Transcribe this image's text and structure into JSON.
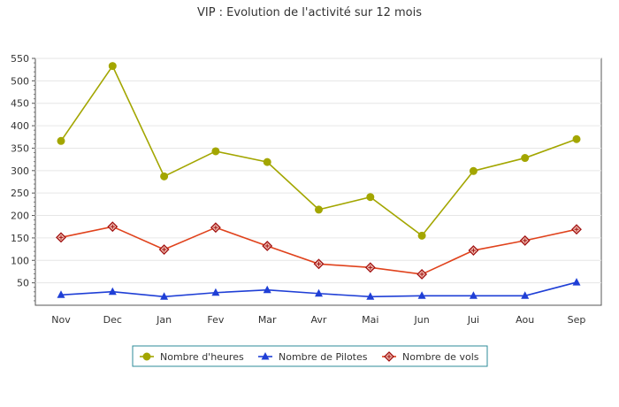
{
  "chart_data": {
    "type": "line",
    "title": "VIP : Evolution de l'activité sur 12 mois",
    "categories": [
      "Nov",
      "Dec",
      "Jan",
      "Fev",
      "Mar",
      "Avr",
      "Mai",
      "Jun",
      "Jui",
      "Aou",
      "Sep"
    ],
    "yticks": [
      "50",
      "100",
      "150",
      "200",
      "250",
      "300",
      "350",
      "400",
      "450",
      "500",
      "550"
    ],
    "ylim": [
      0,
      550
    ],
    "grid": true,
    "legend_position": "bottom",
    "series": [
      {
        "name": "Nombre d'heures",
        "color": "#a3a600",
        "marker": "circle",
        "values": [
          374,
          541,
          295,
          351,
          327,
          221,
          249,
          163,
          307,
          336,
          378
        ]
      },
      {
        "name": "Nombre de Pilotes",
        "color": "#1f3fd6",
        "marker": "triangle",
        "values": [
          31,
          38,
          27,
          36,
          42,
          34,
          27,
          29,
          29,
          29,
          59
        ]
      },
      {
        "name": "Nombre de vols",
        "color": "#e0421c",
        "marker": "diamond",
        "values": [
          159,
          183,
          132,
          181,
          140,
          100,
          92,
          77,
          130,
          152,
          177
        ]
      }
    ]
  }
}
